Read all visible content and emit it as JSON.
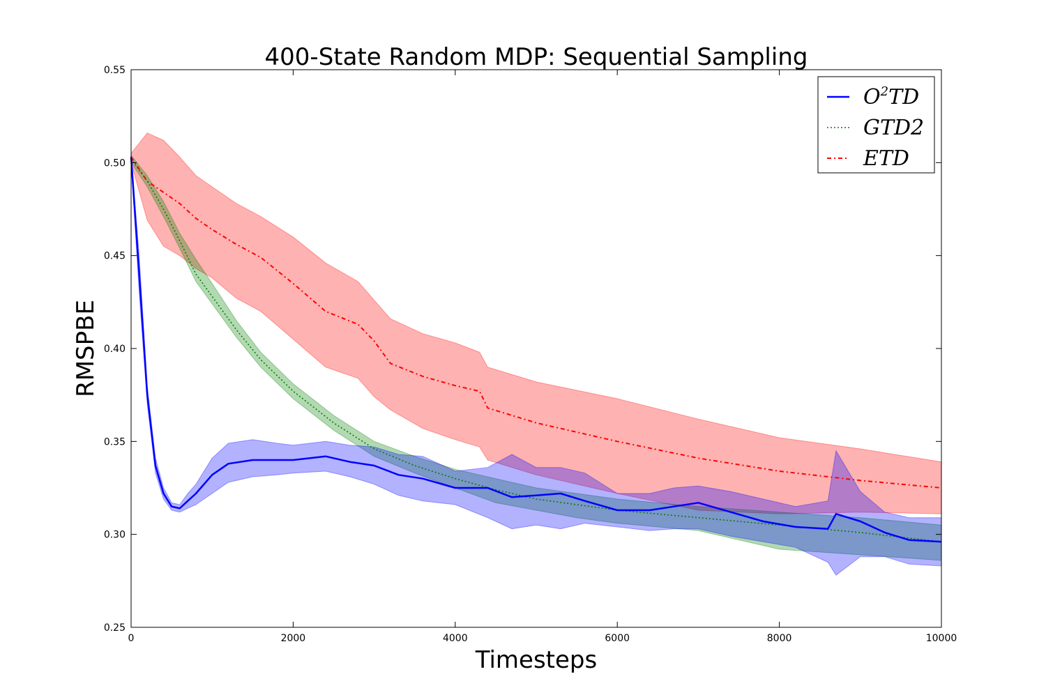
{
  "chart_data": {
    "type": "line",
    "title": "400-State Random MDP: Sequential Sampling",
    "xlabel": "Timesteps",
    "ylabel": "RMSPBE",
    "xlim": [
      0,
      10000
    ],
    "ylim": [
      0.25,
      0.55
    ],
    "xticks": [
      0,
      2000,
      4000,
      6000,
      8000,
      10000
    ],
    "xtick_labels": [
      "0",
      "2000",
      "4000",
      "6000",
      "8000",
      "10000"
    ],
    "yticks": [
      0.25,
      0.3,
      0.35,
      0.4,
      0.45,
      0.5,
      0.55
    ],
    "ytick_labels": [
      "0.25",
      "0.30",
      "0.35",
      "0.40",
      "0.45",
      "0.50",
      "0.55"
    ],
    "legend_position": "top-right",
    "series": [
      {
        "name": "O2TD",
        "legend_base": "O",
        "legend_sup": "2",
        "legend_rest": "TD",
        "color": "#0000ff",
        "linestyle": "solid",
        "x": [
          0,
          100,
          200,
          300,
          400,
          500,
          600,
          700,
          800,
          1000,
          1200,
          1500,
          1800,
          2000,
          2400,
          2700,
          3000,
          3300,
          3600,
          4000,
          4400,
          4700,
          5000,
          5300,
          5600,
          6000,
          6400,
          6700,
          7000,
          7400,
          7800,
          8200,
          8600,
          8700,
          9000,
          9300,
          9600,
          10000
        ],
        "y": [
          0.503,
          0.44,
          0.375,
          0.337,
          0.322,
          0.315,
          0.314,
          0.318,
          0.322,
          0.332,
          0.338,
          0.34,
          0.34,
          0.34,
          0.342,
          0.339,
          0.337,
          0.332,
          0.33,
          0.325,
          0.325,
          0.32,
          0.321,
          0.322,
          0.318,
          0.313,
          0.313,
          0.315,
          0.317,
          0.312,
          0.307,
          0.304,
          0.303,
          0.311,
          0.307,
          0.301,
          0.297,
          0.296
        ],
        "lower": [
          0.5,
          0.43,
          0.37,
          0.333,
          0.319,
          0.313,
          0.312,
          0.314,
          0.316,
          0.322,
          0.328,
          0.331,
          0.332,
          0.333,
          0.334,
          0.331,
          0.327,
          0.321,
          0.318,
          0.316,
          0.309,
          0.303,
          0.305,
          0.303,
          0.306,
          0.304,
          0.302,
          0.303,
          0.303,
          0.299,
          0.296,
          0.293,
          0.285,
          0.278,
          0.288,
          0.288,
          0.284,
          0.283
        ],
        "upper": [
          0.505,
          0.45,
          0.38,
          0.341,
          0.325,
          0.317,
          0.316,
          0.322,
          0.327,
          0.341,
          0.349,
          0.351,
          0.349,
          0.348,
          0.35,
          0.348,
          0.347,
          0.343,
          0.342,
          0.334,
          0.336,
          0.343,
          0.336,
          0.336,
          0.333,
          0.322,
          0.322,
          0.325,
          0.326,
          0.323,
          0.319,
          0.315,
          0.318,
          0.345,
          0.323,
          0.312,
          0.309,
          0.309
        ]
      },
      {
        "name": "GTD2",
        "legend_base": "GTD2",
        "legend_sup": "",
        "legend_rest": "",
        "color": "#007f00",
        "linestyle": "dotted",
        "x": [
          0,
          200,
          400,
          600,
          800,
          1000,
          1300,
          1600,
          2000,
          2500,
          3000,
          3500,
          4000,
          4500,
          5000,
          5500,
          6000,
          7000,
          8000,
          9000,
          10000
        ],
        "y": [
          0.502,
          0.49,
          0.475,
          0.458,
          0.44,
          0.428,
          0.41,
          0.394,
          0.377,
          0.36,
          0.346,
          0.337,
          0.33,
          0.324,
          0.319,
          0.316,
          0.313,
          0.309,
          0.305,
          0.301,
          0.296
        ],
        "lower": [
          0.5,
          0.487,
          0.471,
          0.454,
          0.436,
          0.424,
          0.406,
          0.39,
          0.373,
          0.356,
          0.342,
          0.333,
          0.325,
          0.317,
          0.313,
          0.309,
          0.306,
          0.302,
          0.292,
          0.289,
          0.286
        ],
        "upper": [
          0.504,
          0.493,
          0.479,
          0.462,
          0.448,
          0.435,
          0.415,
          0.398,
          0.381,
          0.364,
          0.35,
          0.342,
          0.335,
          0.33,
          0.325,
          0.322,
          0.319,
          0.315,
          0.312,
          0.309,
          0.305
        ]
      },
      {
        "name": "ETD",
        "legend_base": "ETD",
        "legend_sup": "",
        "legend_rest": "",
        "color": "#ff0000",
        "linestyle": "dashdot",
        "x": [
          0,
          200,
          400,
          600,
          800,
          1000,
          1300,
          1600,
          2000,
          2400,
          2800,
          3000,
          3200,
          3600,
          4000,
          4300,
          4400,
          5000,
          6000,
          7000,
          8000,
          9000,
          10000
        ],
        "y": [
          0.503,
          0.49,
          0.484,
          0.478,
          0.47,
          0.464,
          0.456,
          0.449,
          0.435,
          0.42,
          0.413,
          0.404,
          0.392,
          0.385,
          0.38,
          0.377,
          0.368,
          0.36,
          0.35,
          0.341,
          0.334,
          0.329,
          0.325
        ],
        "lower": [
          0.5,
          0.469,
          0.455,
          0.45,
          0.443,
          0.438,
          0.427,
          0.42,
          0.405,
          0.39,
          0.384,
          0.374,
          0.367,
          0.357,
          0.351,
          0.347,
          0.34,
          0.332,
          0.322,
          0.313,
          0.311,
          0.312,
          0.311
        ],
        "upper": [
          0.505,
          0.516,
          0.512,
          0.503,
          0.493,
          0.487,
          0.478,
          0.471,
          0.46,
          0.446,
          0.436,
          0.426,
          0.416,
          0.408,
          0.403,
          0.398,
          0.39,
          0.382,
          0.373,
          0.362,
          0.352,
          0.346,
          0.339
        ]
      }
    ]
  }
}
